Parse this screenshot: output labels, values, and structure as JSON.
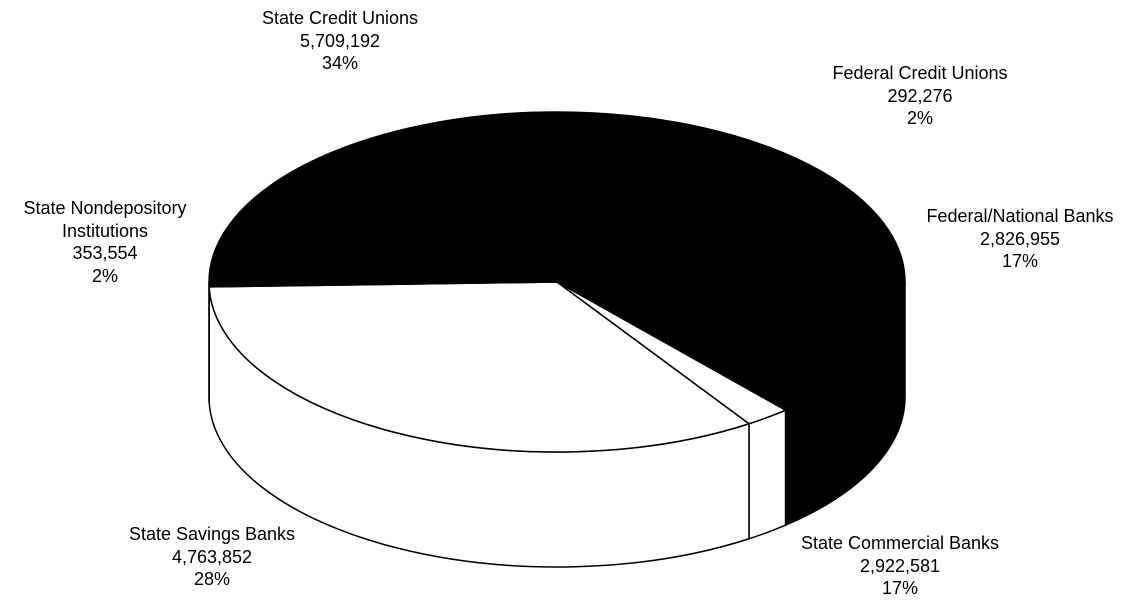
{
  "chart_data": {
    "type": "pie",
    "title": "",
    "style": "3d-oval",
    "slices": [
      {
        "label": "State Credit Unions",
        "value": 5709192,
        "value_text": "5,709,192",
        "percent_text": "34%",
        "color": "#ffffff"
      },
      {
        "label": "Federal Credit Unions",
        "value": 292276,
        "value_text": "292,276",
        "percent_text": "2%",
        "color": "#000000"
      },
      {
        "label": "Federal/National Banks",
        "value": 2826955,
        "value_text": "2,826,955",
        "percent_text": "17%",
        "color": "#000000"
      },
      {
        "label": "State Commercial Banks",
        "value": 2922581,
        "value_text": "2,922,581",
        "percent_text": "17%",
        "color": "#000000"
      },
      {
        "label": "State Savings Banks",
        "value": 4763852,
        "value_text": "4,763,852",
        "percent_text": "28%",
        "color": "#000000"
      },
      {
        "label": "State Nondepository Institutions",
        "label_lines": [
          "State Nondepository",
          "Institutions"
        ],
        "value": 353554,
        "value_text": "353,554",
        "percent_text": "2%",
        "color": "#ffffff"
      }
    ]
  }
}
